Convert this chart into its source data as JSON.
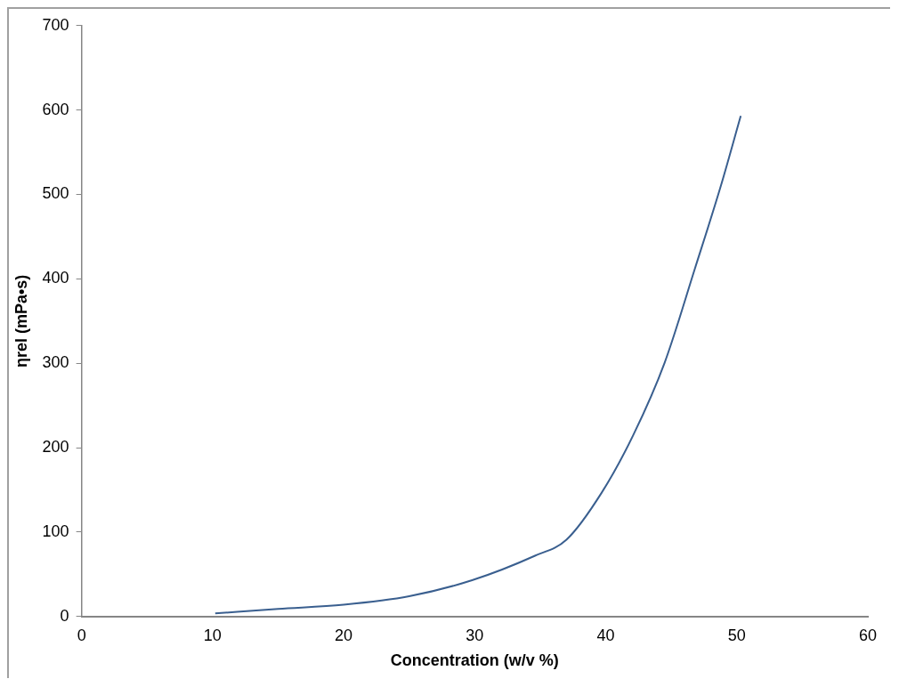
{
  "chart_data": {
    "type": "line",
    "xlabel": "Concentration (w/v %)",
    "ylabel": "ηrel (mPa•s)",
    "x": [
      10.2,
      15,
      20,
      25,
      29.8,
      34.6,
      37,
      39.7,
      42.1,
      44.5,
      46.8,
      48.8,
      50.3
    ],
    "series": [
      {
        "color": "#3a5f8f",
        "values": [
          3.7,
          9,
          14,
          24,
          43,
          72,
          91,
          147,
          215,
          301,
          412,
          511,
          593
        ]
      }
    ],
    "xlim": [
      0,
      60
    ],
    "xticks": [
      0,
      10,
      20,
      30,
      40,
      50,
      60
    ],
    "ylim": [
      0,
      700
    ],
    "yticks": [
      0,
      100,
      200,
      300,
      400,
      500,
      600,
      700
    ],
    "grid": false,
    "legend": false,
    "marker": "none",
    "line_style": "solid"
  }
}
